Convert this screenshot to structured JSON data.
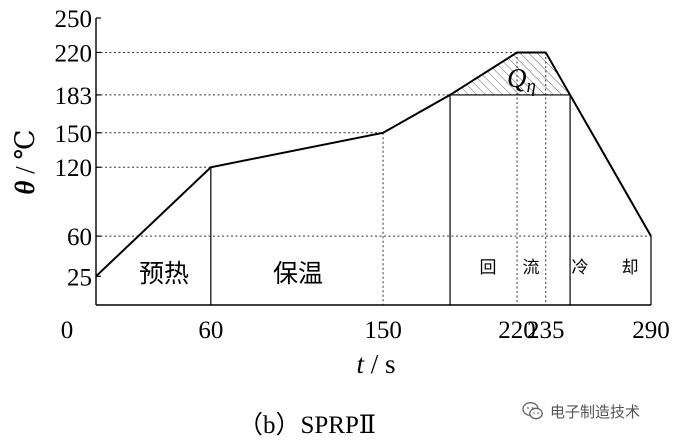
{
  "chart_data": {
    "type": "line",
    "xlabel_var": "t",
    "xlabel_unit": "s",
    "ylabel_var": "θ",
    "ylabel_unit": "℃",
    "axis_sep": "/",
    "xlim": [
      0,
      290
    ],
    "ylim": [
      0,
      250
    ],
    "x_ticks": [
      0,
      60,
      150,
      220,
      235,
      290
    ],
    "y_ticks": [
      25,
      60,
      120,
      150,
      183,
      220,
      250
    ],
    "x_tick_labels": [
      "0",
      "60",
      "150",
      "220",
      "235",
      "290"
    ],
    "y_tick_labels": [
      "25",
      "60",
      "120",
      "150",
      "183",
      "220",
      "250"
    ],
    "series": [
      {
        "x": [
          0,
          60,
          150,
          185,
          220,
          235,
          290
        ],
        "y": [
          25,
          120,
          150,
          183,
          220,
          220,
          60
        ]
      }
    ],
    "zones": {
      "preheat": "预热",
      "soak": "保温",
      "reflow_1": "回",
      "reflow_2": "流",
      "cool_1": "冷",
      "cool_2": "却"
    },
    "annotation_main": "Q",
    "annotation_sub": "η",
    "hatched_region": "above 183 ℃",
    "grid": "dotted guides",
    "line_color": "#000000"
  },
  "caption": "（b）SPRPⅡ",
  "watermark": {
    "icon": "wechat-icon",
    "text": "电子制造技术"
  }
}
